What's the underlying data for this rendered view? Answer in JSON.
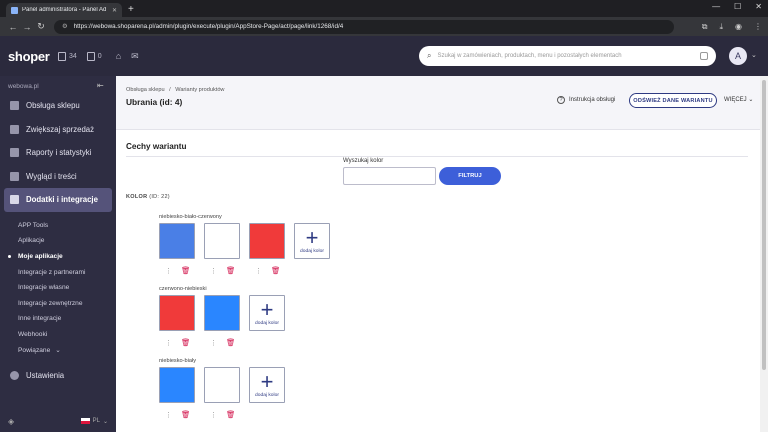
{
  "browser": {
    "tab_title": "Panel administratora - Panel Ad",
    "url": "https://webowa.shoparena.pl/admin/plugin/execute/plugin/AppStore-Page/act/page/link/1268/id/4"
  },
  "header": {
    "logo": "shoper",
    "badge1_count": "34",
    "badge2_count": "0",
    "search_placeholder": "Szukaj w zamówieniach, produktach, menu i pozostałych elementach",
    "avatar_initial": "A"
  },
  "sidebar": {
    "shop_name": "webowa.pl",
    "items": [
      {
        "label": "Obsługa sklepu"
      },
      {
        "label": "Zwiększaj sprzedaż"
      },
      {
        "label": "Raporty i statystyki"
      },
      {
        "label": "Wygląd i treści"
      },
      {
        "label": "Dodatki i integracje"
      }
    ],
    "subitems": [
      {
        "label": "APP Tools"
      },
      {
        "label": "Aplikacje"
      },
      {
        "label": "Moje aplikacje"
      },
      {
        "label": "Integracje z partnerami"
      },
      {
        "label": "Integracje własne"
      },
      {
        "label": "Integracje zewnętrzne"
      },
      {
        "label": "Inne integracje"
      },
      {
        "label": "Webhooki"
      },
      {
        "label": "Powiązane"
      }
    ],
    "settings": "Ustawienia",
    "lang": "PL"
  },
  "page": {
    "breadcrumb1": "Obsługa sklepu",
    "breadcrumb_sep": "/",
    "breadcrumb2": "Warianty produktów",
    "title": "Ubrania (id: 4)",
    "help_label": "Instrukcja obsługi",
    "refresh_label": "ODŚWIEŻ DANE WARIANTU",
    "more_label": "WIĘCEJ",
    "section_title": "Cechy wariantu",
    "search_color_label": "Wyszukaj kolor",
    "filter_label": "FILTRUJ",
    "kolor_label": "KOLOR",
    "kolor_id": "(ID: 22)",
    "add_color_label": "dodaj kolor"
  },
  "colors": {
    "blue": "#4a7fe6",
    "white": "#ffffff",
    "red": "#f03a3a",
    "blue2": "#2a86ff",
    "accent": "#2e3a82",
    "delete": "#d11149"
  },
  "variants": [
    {
      "name": "niebiesko-biało-czerwony"
    },
    {
      "name": "czerwono-niebieski"
    },
    {
      "name": "niebiesko-biały"
    }
  ]
}
